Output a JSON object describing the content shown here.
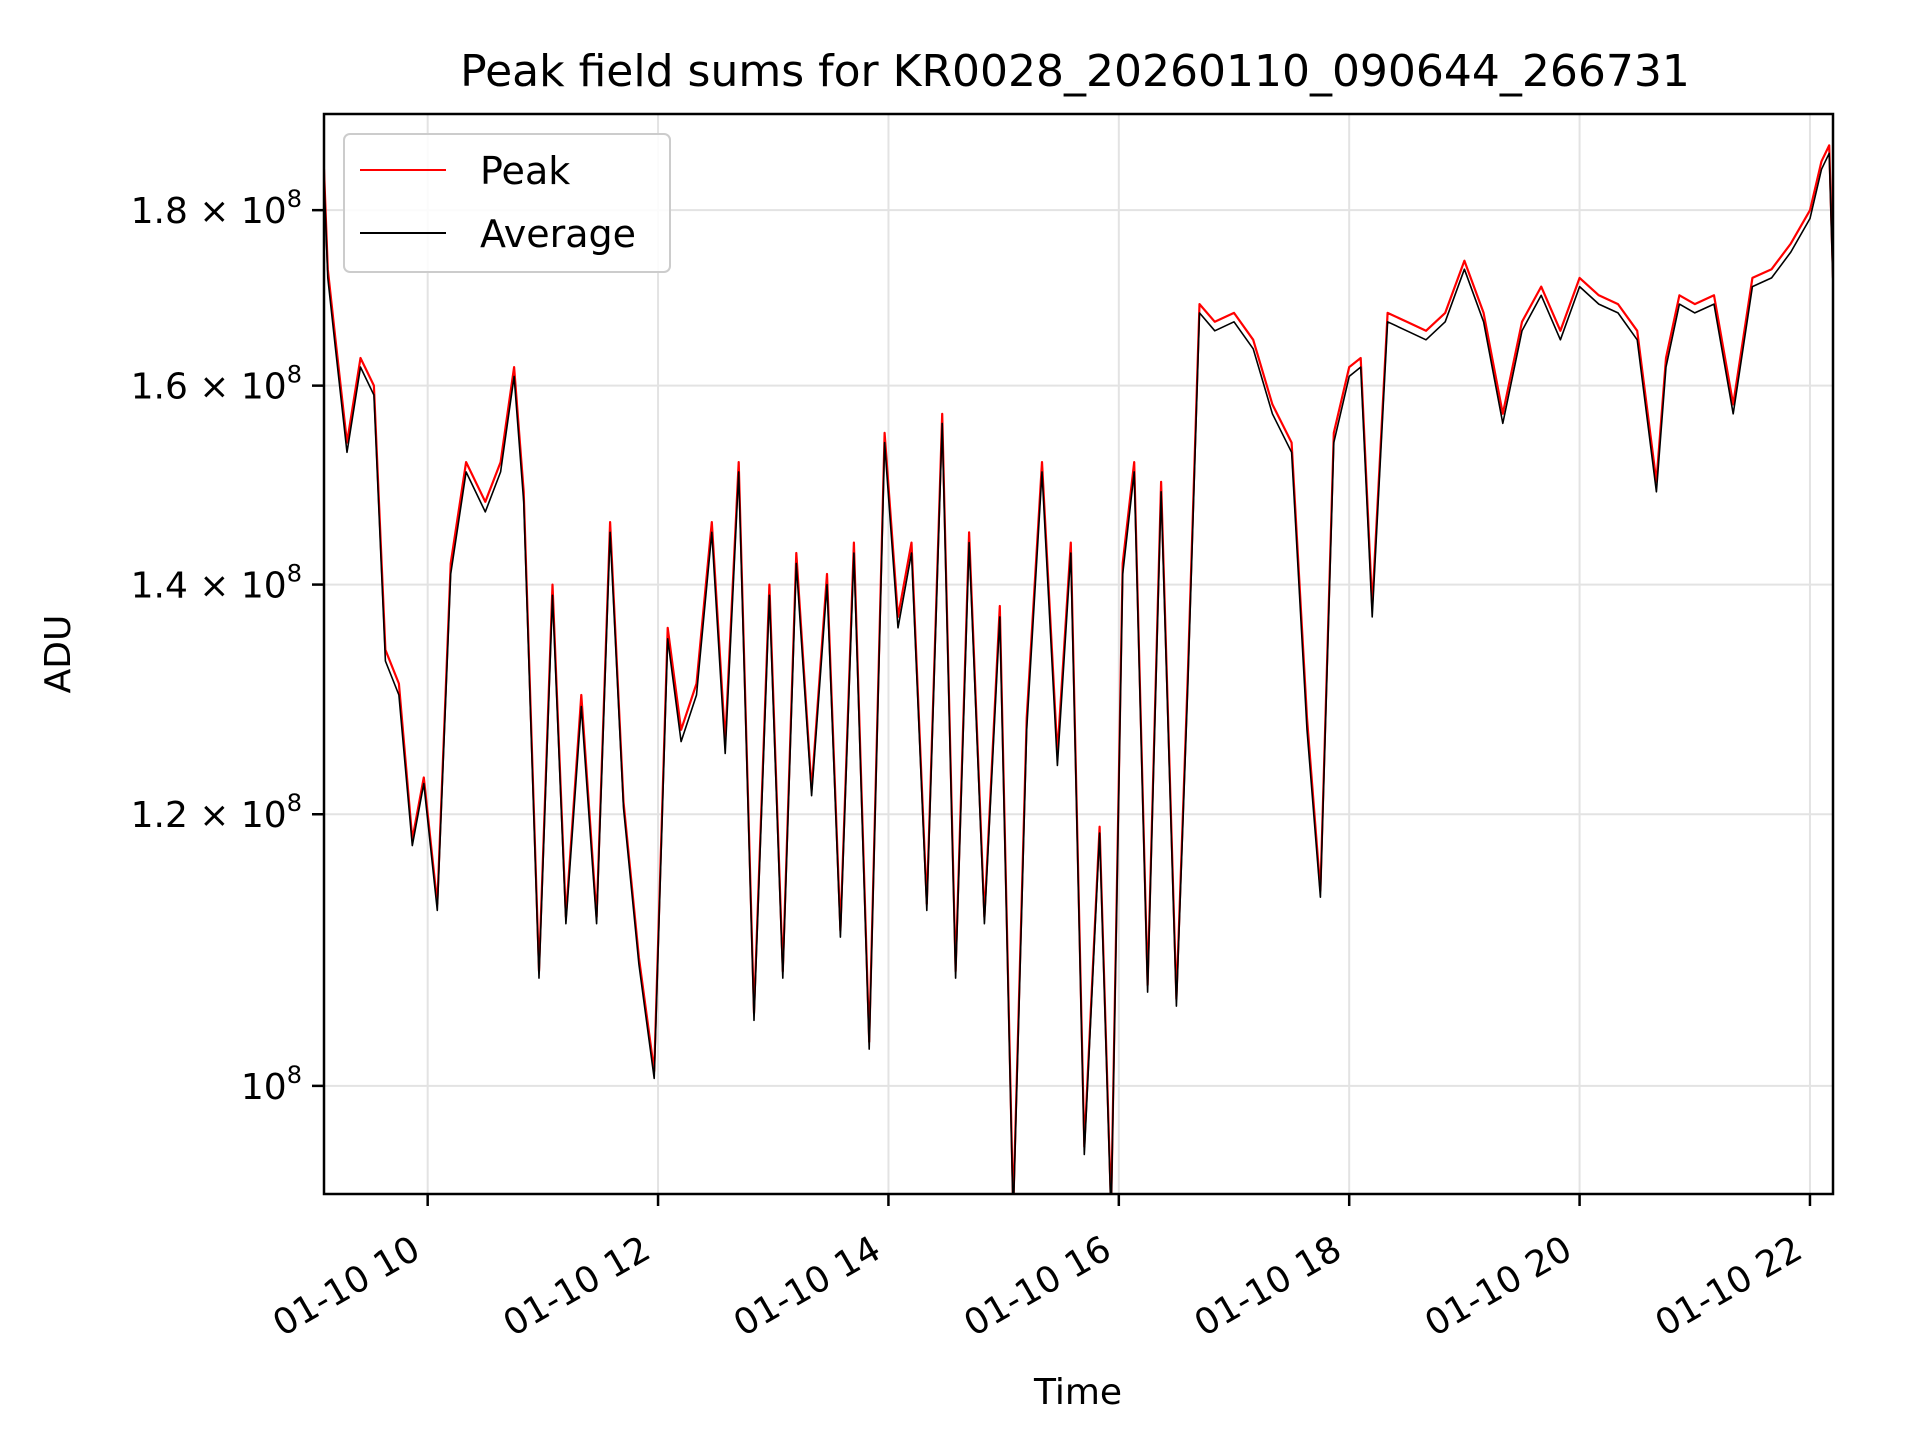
{
  "chart_data": {
    "type": "line",
    "title": "Peak field sums for KR0028_20260110_090644_266731",
    "xlabel": "Time",
    "ylabel": "ADU",
    "yscale": "log",
    "xlim": [
      "2026-01-10 09:06",
      "2026-01-10 22:12"
    ],
    "ylim": [
      93000000,
      192000000
    ],
    "grid": true,
    "legend_position": "top-left",
    "x_ticks": [
      {
        "value": "2026-01-10 10:00",
        "label": "01-10 10"
      },
      {
        "value": "2026-01-10 12:00",
        "label": "01-10 12"
      },
      {
        "value": "2026-01-10 14:00",
        "label": "01-10 14"
      },
      {
        "value": "2026-01-10 16:00",
        "label": "01-10 16"
      },
      {
        "value": "2026-01-10 18:00",
        "label": "01-10 18"
      },
      {
        "value": "2026-01-10 20:00",
        "label": "01-10 20"
      },
      {
        "value": "2026-01-10 22:00",
        "label": "01-10 22"
      }
    ],
    "y_ticks": [
      {
        "value": 100000000,
        "mantissa": "",
        "exponent": "8"
      },
      {
        "value": 120000000,
        "mantissa": "1.2",
        "exponent": "8"
      },
      {
        "value": 140000000,
        "mantissa": "1.4",
        "exponent": "8"
      },
      {
        "value": 160000000,
        "mantissa": "1.6",
        "exponent": "8"
      },
      {
        "value": 180000000,
        "mantissa": "1.8",
        "exponent": "8"
      }
    ],
    "series": [
      {
        "name": "Peak",
        "color": "#ff0000",
        "x": [
          "2026-01-10 09:06",
          "2026-01-10 09:08",
          "2026-01-10 09:12",
          "2026-01-10 09:18",
          "2026-01-10 09:25",
          "2026-01-10 09:32",
          "2026-01-10 09:38",
          "2026-01-10 09:45",
          "2026-01-10 09:52",
          "2026-01-10 09:58",
          "2026-01-10 10:05",
          "2026-01-10 10:12",
          "2026-01-10 10:20",
          "2026-01-10 10:30",
          "2026-01-10 10:38",
          "2026-01-10 10:45",
          "2026-01-10 10:50",
          "2026-01-10 10:58",
          "2026-01-10 11:05",
          "2026-01-10 11:12",
          "2026-01-10 11:20",
          "2026-01-10 11:28",
          "2026-01-10 11:35",
          "2026-01-10 11:42",
          "2026-01-10 11:50",
          "2026-01-10 11:58",
          "2026-01-10 12:05",
          "2026-01-10 12:12",
          "2026-01-10 12:20",
          "2026-01-10 12:28",
          "2026-01-10 12:35",
          "2026-01-10 12:42",
          "2026-01-10 12:50",
          "2026-01-10 12:58",
          "2026-01-10 13:05",
          "2026-01-10 13:12",
          "2026-01-10 13:20",
          "2026-01-10 13:28",
          "2026-01-10 13:35",
          "2026-01-10 13:42",
          "2026-01-10 13:50",
          "2026-01-10 13:58",
          "2026-01-10 14:05",
          "2026-01-10 14:12",
          "2026-01-10 14:20",
          "2026-01-10 14:28",
          "2026-01-10 14:35",
          "2026-01-10 14:42",
          "2026-01-10 14:50",
          "2026-01-10 14:58",
          "2026-01-10 15:05",
          "2026-01-10 15:12",
          "2026-01-10 15:20",
          "2026-01-10 15:28",
          "2026-01-10 15:35",
          "2026-01-10 15:42",
          "2026-01-10 15:50",
          "2026-01-10 15:56",
          "2026-01-10 16:02",
          "2026-01-10 16:08",
          "2026-01-10 16:15",
          "2026-01-10 16:22",
          "2026-01-10 16:30",
          "2026-01-10 16:36",
          "2026-01-10 16:42",
          "2026-01-10 16:50",
          "2026-01-10 17:00",
          "2026-01-10 17:10",
          "2026-01-10 17:20",
          "2026-01-10 17:30",
          "2026-01-10 17:38",
          "2026-01-10 17:45",
          "2026-01-10 17:52",
          "2026-01-10 18:00",
          "2026-01-10 18:06",
          "2026-01-10 18:12",
          "2026-01-10 18:20",
          "2026-01-10 18:30",
          "2026-01-10 18:40",
          "2026-01-10 18:50",
          "2026-01-10 19:00",
          "2026-01-10 19:10",
          "2026-01-10 19:20",
          "2026-01-10 19:30",
          "2026-01-10 19:40",
          "2026-01-10 19:50",
          "2026-01-10 20:00",
          "2026-01-10 20:10",
          "2026-01-10 20:20",
          "2026-01-10 20:30",
          "2026-01-10 20:40",
          "2026-01-10 20:45",
          "2026-01-10 20:52",
          "2026-01-10 21:00",
          "2026-01-10 21:10",
          "2026-01-10 21:20",
          "2026-01-10 21:30",
          "2026-01-10 21:40",
          "2026-01-10 21:50",
          "2026-01-10 22:00",
          "2026-01-10 22:06",
          "2026-01-10 22:10",
          "2026-01-10 22:12"
        ],
        "values": [
          185000000,
          173000000,
          165000000,
          154000000,
          163000000,
          160000000,
          134000000,
          131000000,
          118000000,
          123000000,
          113000000,
          142000000,
          152000000,
          148000000,
          152000000,
          162000000,
          149000000,
          108000000,
          140000000,
          112000000,
          130000000,
          112000000,
          146000000,
          121000000,
          109000000,
          101000000,
          136000000,
          127000000,
          131000000,
          146000000,
          126000000,
          152000000,
          105000000,
          140000000,
          108000000,
          143000000,
          122000000,
          141000000,
          111000000,
          144000000,
          103000000,
          155000000,
          137000000,
          144000000,
          113000000,
          157000000,
          108000000,
          145000000,
          112000000,
          138000000,
          92000000,
          128000000,
          152000000,
          125000000,
          144000000,
          96000000,
          119000000,
          92000000,
          142000000,
          152000000,
          107000000,
          150000000,
          106000000,
          132000000,
          169000000,
          167000000,
          168000000,
          165000000,
          158000000,
          154000000,
          128000000,
          114000000,
          155000000,
          162000000,
          163000000,
          138000000,
          168000000,
          167000000,
          166000000,
          168000000,
          174000000,
          168000000,
          157000000,
          167000000,
          171000000,
          166000000,
          172000000,
          170000000,
          169000000,
          166000000,
          150000000,
          163000000,
          170000000,
          169000000,
          170000000,
          158000000,
          172000000,
          173000000,
          176000000,
          180000000,
          186000000,
          188000000,
          172000000
        ]
      },
      {
        "name": "Average",
        "color": "#000000",
        "x": [
          "2026-01-10 09:06",
          "2026-01-10 09:08",
          "2026-01-10 09:12",
          "2026-01-10 09:18",
          "2026-01-10 09:25",
          "2026-01-10 09:32",
          "2026-01-10 09:38",
          "2026-01-10 09:45",
          "2026-01-10 09:52",
          "2026-01-10 09:58",
          "2026-01-10 10:05",
          "2026-01-10 10:12",
          "2026-01-10 10:20",
          "2026-01-10 10:30",
          "2026-01-10 10:38",
          "2026-01-10 10:45",
          "2026-01-10 10:50",
          "2026-01-10 10:58",
          "2026-01-10 11:05",
          "2026-01-10 11:12",
          "2026-01-10 11:20",
          "2026-01-10 11:28",
          "2026-01-10 11:35",
          "2026-01-10 11:42",
          "2026-01-10 11:50",
          "2026-01-10 11:58",
          "2026-01-10 12:05",
          "2026-01-10 12:12",
          "2026-01-10 12:20",
          "2026-01-10 12:28",
          "2026-01-10 12:35",
          "2026-01-10 12:42",
          "2026-01-10 12:50",
          "2026-01-10 12:58",
          "2026-01-10 13:05",
          "2026-01-10 13:12",
          "2026-01-10 13:20",
          "2026-01-10 13:28",
          "2026-01-10 13:35",
          "2026-01-10 13:42",
          "2026-01-10 13:50",
          "2026-01-10 13:58",
          "2026-01-10 14:05",
          "2026-01-10 14:12",
          "2026-01-10 14:20",
          "2026-01-10 14:28",
          "2026-01-10 14:35",
          "2026-01-10 14:42",
          "2026-01-10 14:50",
          "2026-01-10 14:58",
          "2026-01-10 15:05",
          "2026-01-10 15:12",
          "2026-01-10 15:20",
          "2026-01-10 15:28",
          "2026-01-10 15:35",
          "2026-01-10 15:42",
          "2026-01-10 15:50",
          "2026-01-10 15:56",
          "2026-01-10 16:02",
          "2026-01-10 16:08",
          "2026-01-10 16:15",
          "2026-01-10 16:22",
          "2026-01-10 16:30",
          "2026-01-10 16:36",
          "2026-01-10 16:42",
          "2026-01-10 16:50",
          "2026-01-10 17:00",
          "2026-01-10 17:10",
          "2026-01-10 17:20",
          "2026-01-10 17:30",
          "2026-01-10 17:38",
          "2026-01-10 17:45",
          "2026-01-10 17:52",
          "2026-01-10 18:00",
          "2026-01-10 18:06",
          "2026-01-10 18:12",
          "2026-01-10 18:20",
          "2026-01-10 18:30",
          "2026-01-10 18:40",
          "2026-01-10 18:50",
          "2026-01-10 19:00",
          "2026-01-10 19:10",
          "2026-01-10 19:20",
          "2026-01-10 19:30",
          "2026-01-10 19:40",
          "2026-01-10 19:50",
          "2026-01-10 20:00",
          "2026-01-10 20:10",
          "2026-01-10 20:20",
          "2026-01-10 20:30",
          "2026-01-10 20:40",
          "2026-01-10 20:45",
          "2026-01-10 20:52",
          "2026-01-10 21:00",
          "2026-01-10 21:10",
          "2026-01-10 21:20",
          "2026-01-10 21:30",
          "2026-01-10 21:40",
          "2026-01-10 21:50",
          "2026-01-10 22:00",
          "2026-01-10 22:06",
          "2026-01-10 22:10",
          "2026-01-10 22:12"
        ],
        "values": [
          184000000,
          172000000,
          164000000,
          153000000,
          162000000,
          159000000,
          133000000,
          130000000,
          117500000,
          122500000,
          112500000,
          141000000,
          151000000,
          147000000,
          151000000,
          161000000,
          148000000,
          107500000,
          139000000,
          111500000,
          129000000,
          111500000,
          145000000,
          120500000,
          108500000,
          100500000,
          135000000,
          126000000,
          130000000,
          145000000,
          125000000,
          151000000,
          104500000,
          139000000,
          107500000,
          142000000,
          121500000,
          140000000,
          110500000,
          143000000,
          102500000,
          154000000,
          136000000,
          143000000,
          112500000,
          156000000,
          107500000,
          144000000,
          111500000,
          137000000,
          91500000,
          127000000,
          151000000,
          124000000,
          143000000,
          95500000,
          118500000,
          91500000,
          141000000,
          151000000,
          106500000,
          149000000,
          105500000,
          131000000,
          168000000,
          166000000,
          167000000,
          164000000,
          157000000,
          153000000,
          127000000,
          113500000,
          154000000,
          161000000,
          162000000,
          137000000,
          167000000,
          166000000,
          165000000,
          167000000,
          173000000,
          167000000,
          156000000,
          166000000,
          170000000,
          165000000,
          171000000,
          169000000,
          168000000,
          165000000,
          149000000,
          162000000,
          169000000,
          168000000,
          169000000,
          157000000,
          171000000,
          172000000,
          175000000,
          179000000,
          185000000,
          187000000,
          171000000
        ]
      }
    ]
  }
}
